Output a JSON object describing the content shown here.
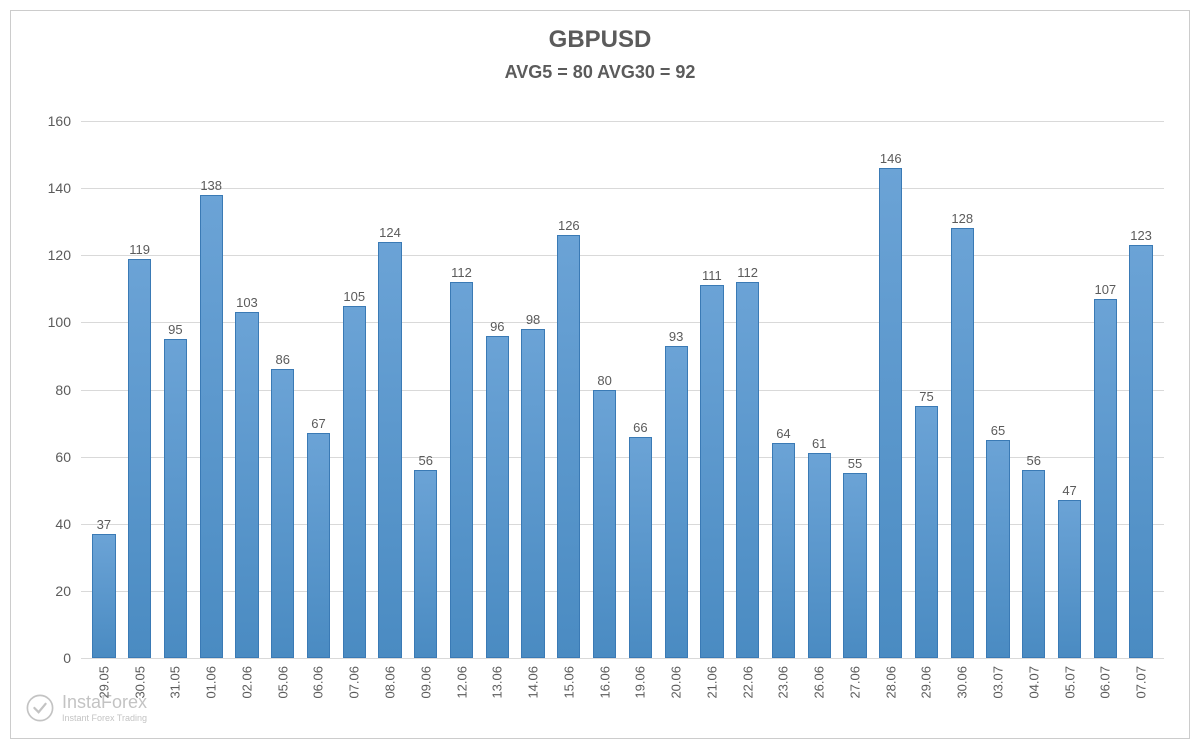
{
  "chart": {
    "type": "bar",
    "title": "GBPUSD",
    "subtitle": "AVG5 = 80 AVG30 = 92",
    "title_fontsize": 24,
    "subtitle_fontsize": 18,
    "title_color": "#5b5b5b",
    "background_color": "#ffffff",
    "grid_color": "#d9d9d9",
    "border_color": "#cccccc",
    "ylim": [
      0,
      160
    ],
    "ytick_step": 20,
    "yticks": [
      0,
      20,
      40,
      60,
      80,
      100,
      120,
      140,
      160
    ],
    "label_fontsize": 14,
    "label_color": "#5b5b5b",
    "bar_color_top": "#6ba3d6",
    "bar_color_bottom": "#4a8bc2",
    "bar_border_color": "#3a7ab5",
    "bar_width": 0.65,
    "categories": [
      "29.05",
      "30.05",
      "31.05",
      "01.06",
      "02.06",
      "05.06",
      "06.06",
      "07.06",
      "08.06",
      "09.06",
      "12.06",
      "13.06",
      "14.06",
      "15.06",
      "16.06",
      "19.06",
      "20.06",
      "21.06",
      "22.06",
      "23.06",
      "26.06",
      "27.06",
      "28.06",
      "29.06",
      "30.06",
      "03.07",
      "04.07",
      "05.07",
      "06.07",
      "07.07"
    ],
    "values": [
      37,
      119,
      95,
      138,
      103,
      86,
      67,
      105,
      124,
      56,
      112,
      96,
      98,
      126,
      80,
      66,
      93,
      111,
      112,
      64,
      61,
      55,
      146,
      75,
      128,
      65,
      56,
      47,
      107,
      123
    ]
  },
  "watermark": {
    "main": "InstaForex",
    "sub": "Instant Forex Trading",
    "main_fontsize": 18,
    "sub_fontsize": 9,
    "color": "#888888",
    "opacity": 0.5
  }
}
